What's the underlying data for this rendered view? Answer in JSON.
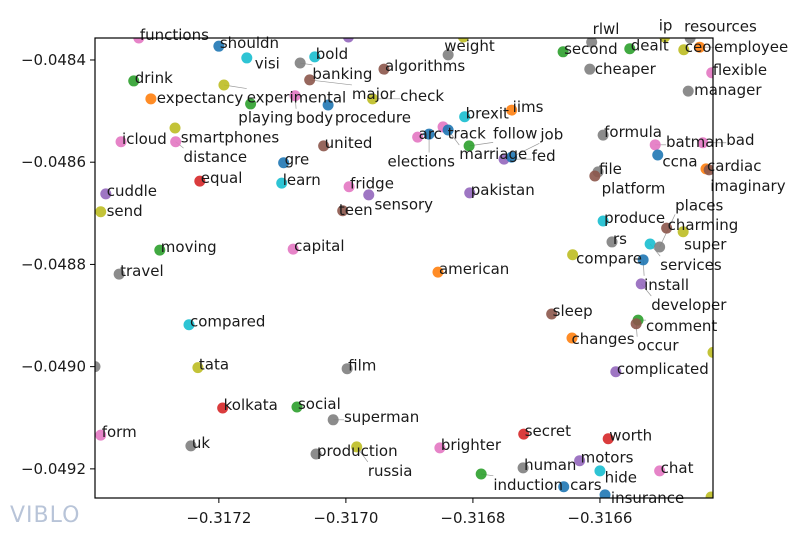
{
  "watermark": "VIBLO",
  "chart_data": {
    "type": "scatter",
    "title": "",
    "xlabel": "",
    "ylabel": "",
    "xlim": [
      -0.317395,
      -0.316422
    ],
    "ylim": [
      -0.049257,
      -0.048357
    ],
    "xticks": [
      {
        "value": -0.3172,
        "label": "−0.3172"
      },
      {
        "value": -0.317,
        "label": "−0.3170"
      },
      {
        "value": -0.3168,
        "label": "−0.3168"
      },
      {
        "value": -0.3166,
        "label": "−0.3166"
      }
    ],
    "yticks": [
      {
        "value": -0.0484,
        "label": "−0.0484"
      },
      {
        "value": -0.0486,
        "label": "−0.0486"
      },
      {
        "value": -0.0488,
        "label": "−0.0488"
      },
      {
        "value": -0.049,
        "label": "−0.0490"
      },
      {
        "value": -0.0492,
        "label": "−0.0492"
      }
    ],
    "grid": false,
    "colors": {
      "blue": "#1f77b4",
      "orange": "#ff7f0e",
      "green": "#2ca02c",
      "red": "#d62728",
      "purple": "#9467bd",
      "brown": "#8c564b",
      "pink": "#e377c2",
      "gray": "#7f7f7f",
      "olive": "#bcbd22",
      "cyan": "#17becf"
    },
    "points": [
      {
        "label": "functions",
        "x": -0.317326,
        "y": -0.048357,
        "color": "pink"
      },
      {
        "label": "shouldn",
        "x": -0.3172,
        "y": -0.048373,
        "color": "blue"
      },
      {
        "label": "visi",
        "x": -0.317156,
        "y": -0.048396,
        "color": "cyan"
      },
      {
        "label": "bold",
        "x": -0.317049,
        "y": -0.048394,
        "color": "cyan"
      },
      {
        "label": "banking",
        "x": -0.317072,
        "y": -0.048406,
        "color": "gray"
      },
      {
        "label": "drink",
        "x": -0.317334,
        "y": -0.048441,
        "color": "green"
      },
      {
        "label": "expectancy",
        "x": -0.317307,
        "y": -0.048476,
        "color": "orange"
      },
      {
        "label": "experimental",
        "x": -0.317192,
        "y": -0.048449,
        "color": "olive"
      },
      {
        "label": "major",
        "x": -0.317057,
        "y": -0.048439,
        "color": "brown"
      },
      {
        "label": "body",
        "x": -0.31708,
        "y": -0.04847,
        "color": "pink"
      },
      {
        "label": "playing",
        "x": -0.31715,
        "y": -0.048486,
        "color": "green"
      },
      {
        "label": "procedure",
        "x": -0.317028,
        "y": -0.048488,
        "color": "blue"
      },
      {
        "label": "check",
        "x": -0.316958,
        "y": -0.048476,
        "color": "olive"
      },
      {
        "label": "algorithms",
        "x": -0.31694,
        "y": -0.048418,
        "color": "brown"
      },
      {
        "label": "weight",
        "x": -0.316839,
        "y": -0.04839,
        "color": "gray"
      },
      {
        "label": "smartphones",
        "x": -0.317269,
        "y": -0.048533,
        "color": "olive"
      },
      {
        "label": "icloud",
        "x": -0.317354,
        "y": -0.04856,
        "color": "pink"
      },
      {
        "label": "distance",
        "x": -0.317268,
        "y": -0.04856,
        "color": "pink"
      },
      {
        "label": "united",
        "x": -0.317035,
        "y": -0.048568,
        "color": "brown"
      },
      {
        "label": "gre",
        "x": -0.317098,
        "y": -0.048601,
        "color": "blue"
      },
      {
        "label": "learn",
        "x": -0.317101,
        "y": -0.048641,
        "color": "cyan"
      },
      {
        "label": "equal",
        "x": -0.31723,
        "y": -0.048637,
        "color": "red"
      },
      {
        "label": "cuddle",
        "x": -0.317378,
        "y": -0.048662,
        "color": "purple"
      },
      {
        "label": "send",
        "x": -0.317386,
        "y": -0.048697,
        "color": "olive"
      },
      {
        "label": "fridge",
        "x": -0.316995,
        "y": -0.048648,
        "color": "pink"
      },
      {
        "label": "sensory",
        "x": -0.316964,
        "y": -0.048664,
        "color": "purple"
      },
      {
        "label": "teen",
        "x": -0.317005,
        "y": -0.048695,
        "color": "brown"
      },
      {
        "label": "pakistan",
        "x": -0.316805,
        "y": -0.04866,
        "color": "purple"
      },
      {
        "label": "moving",
        "x": -0.317293,
        "y": -0.048772,
        "color": "green"
      },
      {
        "label": "capital",
        "x": -0.317083,
        "y": -0.04877,
        "color": "pink"
      },
      {
        "label": "travel",
        "x": -0.317357,
        "y": -0.048819,
        "color": "gray"
      },
      {
        "label": "american",
        "x": -0.316855,
        "y": -0.048815,
        "color": "orange"
      },
      {
        "label": "compared",
        "x": -0.317247,
        "y": -0.048918,
        "color": "cyan"
      },
      {
        "label": "tata",
        "x": -0.317233,
        "y": -0.049002,
        "color": "olive"
      },
      {
        "label": "film",
        "x": -0.316998,
        "y": -0.049004,
        "color": "gray"
      },
      {
        "label": "kolkata",
        "x": -0.317194,
        "y": -0.049081,
        "color": "red"
      },
      {
        "label": "social",
        "x": -0.317077,
        "y": -0.049079,
        "color": "green"
      },
      {
        "label": "superman",
        "x": -0.31702,
        "y": -0.049104,
        "color": "gray"
      },
      {
        "label": "form",
        "x": -0.317386,
        "y": -0.049134,
        "color": "pink"
      },
      {
        "label": "uk",
        "x": -0.317244,
        "y": -0.049155,
        "color": "gray"
      },
      {
        "label": "production",
        "x": -0.317047,
        "y": -0.049171,
        "color": "gray"
      },
      {
        "label": "russia",
        "x": -0.316983,
        "y": -0.049157,
        "color": "olive"
      },
      {
        "label": "brighter",
        "x": -0.316852,
        "y": -0.049159,
        "color": "pink"
      },
      {
        "label": "secret",
        "x": -0.31672,
        "y": -0.049132,
        "color": "red"
      },
      {
        "label": "worth",
        "x": -0.316587,
        "y": -0.049141,
        "color": "red"
      },
      {
        "label": "human",
        "x": -0.316721,
        "y": -0.049198,
        "color": "gray"
      },
      {
        "label": "motors",
        "x": -0.316632,
        "y": -0.049184,
        "color": "purple"
      },
      {
        "label": "induction",
        "x": -0.316787,
        "y": -0.04921,
        "color": "green"
      },
      {
        "label": "hide",
        "x": -0.3166,
        "y": -0.049204,
        "color": "cyan"
      },
      {
        "label": "cars",
        "x": -0.316657,
        "y": -0.049235,
        "color": "blue"
      },
      {
        "label": "chat",
        "x": -0.316506,
        "y": -0.049204,
        "color": "pink"
      },
      {
        "label": "insurance",
        "x": -0.316592,
        "y": -0.049251,
        "color": "blue"
      },
      {
        "label": "brexit",
        "x": -0.316813,
        "y": -0.048511,
        "color": "cyan"
      },
      {
        "label": "iims",
        "x": -0.316739,
        "y": -0.048498,
        "color": "orange"
      },
      {
        "label": "track",
        "x": -0.316847,
        "y": -0.048531,
        "color": "pink"
      },
      {
        "label": "marriage",
        "x": -0.316839,
        "y": -0.048537,
        "color": "blue"
      },
      {
        "label": "arc",
        "x": -0.316887,
        "y": -0.048551,
        "color": "pink"
      },
      {
        "label": "elections",
        "x": -0.316869,
        "y": -0.048545,
        "color": "blue"
      },
      {
        "label": "follow",
        "x": -0.316806,
        "y": -0.048568,
        "color": "green"
      },
      {
        "label": "fed",
        "x": -0.316751,
        "y": -0.048594,
        "color": "purple"
      },
      {
        "label": "job",
        "x": -0.316739,
        "y": -0.04859,
        "color": "blue"
      },
      {
        "label": "second",
        "x": -0.316658,
        "y": -0.048384,
        "color": "green"
      },
      {
        "label": "rlwl",
        "x": -0.316613,
        "y": -0.048365,
        "color": "gray"
      },
      {
        "label": "cheaper",
        "x": -0.316616,
        "y": -0.048418,
        "color": "gray"
      },
      {
        "label": "dealt",
        "x": -0.316553,
        "y": -0.048378,
        "color": "green"
      },
      {
        "label": "ceo",
        "x": -0.316468,
        "y": -0.04838,
        "color": "olive"
      },
      {
        "label": "ip",
        "x": -0.316498,
        "y": -0.048355,
        "color": "olive"
      },
      {
        "label": "resources",
        "x": -0.316458,
        "y": -0.048357,
        "color": "gray"
      },
      {
        "label": "employee",
        "x": -0.316443,
        "y": -0.048375,
        "color": "orange"
      },
      {
        "label": "flexible",
        "x": -0.316424,
        "y": -0.048425,
        "color": "pink"
      },
      {
        "label": "manager",
        "x": -0.316461,
        "y": -0.048461,
        "color": "gray"
      },
      {
        "label": "formula",
        "x": -0.316595,
        "y": -0.048547,
        "color": "gray"
      },
      {
        "label": "batman",
        "x": -0.316513,
        "y": -0.048566,
        "color": "pink"
      },
      {
        "label": "ccna",
        "x": -0.316509,
        "y": -0.048586,
        "color": "blue"
      },
      {
        "label": "bad",
        "x": -0.316438,
        "y": -0.048562,
        "color": "pink"
      },
      {
        "label": "cardiac",
        "x": -0.316433,
        "y": -0.048613,
        "color": "orange"
      },
      {
        "label": "imaginary",
        "x": -0.316428,
        "y": -0.048615,
        "color": "brown"
      },
      {
        "label": "file",
        "x": -0.316603,
        "y": -0.048619,
        "color": "gray"
      },
      {
        "label": "platform",
        "x": -0.316608,
        "y": -0.048627,
        "color": "brown"
      },
      {
        "label": "produce",
        "x": -0.316595,
        "y": -0.048715,
        "color": "cyan"
      },
      {
        "label": "charming",
        "x": -0.316495,
        "y": -0.048729,
        "color": "brown"
      },
      {
        "label": "super",
        "x": -0.316469,
        "y": -0.048736,
        "color": "olive"
      },
      {
        "label": "rs",
        "x": -0.316581,
        "y": -0.048756,
        "color": "gray"
      },
      {
        "label": "services",
        "x": -0.316521,
        "y": -0.04876,
        "color": "cyan"
      },
      {
        "label": "places",
        "x": -0.316506,
        "y": -0.048766,
        "color": "gray"
      },
      {
        "label": "compare",
        "x": -0.316643,
        "y": -0.048781,
        "color": "olive"
      },
      {
        "label": "install",
        "x": -0.316532,
        "y": -0.048791,
        "color": "blue"
      },
      {
        "label": "developer",
        "x": -0.316535,
        "y": -0.048838,
        "color": "purple"
      },
      {
        "label": "sleep",
        "x": -0.316676,
        "y": -0.048897,
        "color": "brown"
      },
      {
        "label": "comment",
        "x": -0.31654,
        "y": -0.048909,
        "color": "green"
      },
      {
        "label": "occur",
        "x": -0.316543,
        "y": -0.048916,
        "color": "brown"
      },
      {
        "label": "changes",
        "x": -0.316644,
        "y": -0.048944,
        "color": "orange"
      },
      {
        "label": "complicated",
        "x": -0.316575,
        "y": -0.04901,
        "color": "purple"
      },
      {
        "label": "",
        "x": -0.317395,
        "y": -0.049,
        "color": "gray"
      },
      {
        "label": "",
        "x": -0.316422,
        "y": -0.048972,
        "color": "olive"
      },
      {
        "label": "",
        "x": -0.316425,
        "y": -0.049255,
        "color": "olive"
      },
      {
        "label": "",
        "x": -0.316996,
        "y": -0.048355,
        "color": "purple"
      },
      {
        "label": "",
        "x": -0.316815,
        "y": -0.048355,
        "color": "olive"
      }
    ]
  }
}
